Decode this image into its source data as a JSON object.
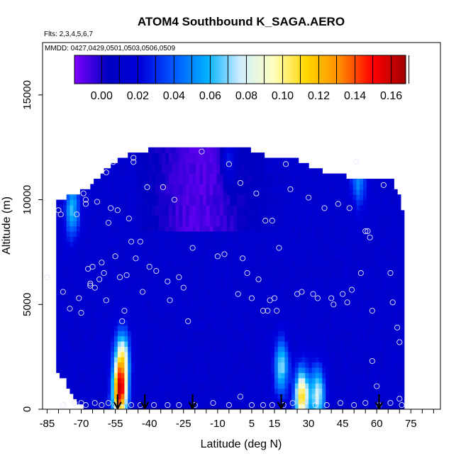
{
  "chart_data": {
    "type": "heatmap",
    "title": "ATOM4 Southbound K_SAGA.AERO",
    "flights_label": "Flts: 2,3,4,5,6,7",
    "dates_label": "MMDD: 0427,0429,0501,0503,0506,0509",
    "xlabel": "Latitude (deg N)",
    "ylabel": "Altitude (m)",
    "xlim": [
      -87,
      88
    ],
    "ylim": [
      0,
      17500
    ],
    "x_ticks": [
      -85,
      -70,
      -55,
      -40,
      -25,
      -10,
      5,
      15,
      30,
      45,
      60,
      75
    ],
    "x_tick_labels": [
      "-85",
      "-70",
      "-55",
      "-40",
      "-25",
      "-10",
      "5",
      "15",
      "30",
      "45",
      "60",
      "75"
    ],
    "y_ticks": [
      0,
      5000,
      10000,
      15000
    ],
    "y_tick_labels": [
      "0",
      "5000",
      "10000",
      "15000"
    ],
    "colorbar": {
      "min": -0.015,
      "max": 0.168,
      "ticks": [
        0.0,
        0.02,
        0.04,
        0.06,
        0.08,
        0.1,
        0.12,
        0.14,
        0.16
      ],
      "tick_labels": [
        "0.00",
        "0.02",
        "0.04",
        "0.06",
        "0.08",
        "0.10",
        "0.12",
        "0.14",
        "0.16"
      ],
      "colors": [
        "#7f00ff",
        "#0000c0",
        "#0000dd",
        "#0058ff",
        "#00b0ff",
        "#cfeeff",
        "#ffffc0",
        "#ffd700",
        "#ff8c00",
        "#ff0000",
        "#a00000"
      ]
    },
    "profile_arrows_lat": [
      -54,
      -42,
      -21,
      18,
      61
    ],
    "coverage_edges": {
      "lat": [
        -81,
        -77,
        -74,
        -70,
        -66,
        -62,
        -58,
        -54,
        -50,
        -46,
        -42,
        -38,
        -34,
        -30,
        -26,
        -22,
        -18,
        -14,
        -10,
        -6,
        -2,
        2,
        6,
        10,
        14,
        18,
        22,
        26,
        30,
        34,
        38,
        42,
        46,
        50,
        54,
        58,
        62,
        66,
        70,
        72
      ],
      "top_alt": [
        9800,
        10000,
        10100,
        10300,
        10500,
        11000,
        11400,
        11800,
        12000,
        12100,
        12200,
        12300,
        12300,
        12400,
        12400,
        12400,
        12400,
        12400,
        12400,
        12400,
        12400,
        12400,
        12200,
        12000,
        12000,
        11900,
        11900,
        11700,
        11500,
        11300,
        11200,
        11100,
        11000,
        11000,
        11000,
        11000,
        11000,
        11000,
        10000,
        9000
      ],
      "bottom_alt": [
        2000,
        1500,
        700,
        300,
        0,
        0,
        0,
        0,
        0,
        0,
        0,
        0,
        0,
        0,
        0,
        0,
        0,
        0,
        0,
        0,
        0,
        0,
        0,
        0,
        0,
        0,
        0,
        0,
        0,
        0,
        0,
        0,
        0,
        0,
        0,
        0,
        0,
        0,
        0,
        0
      ]
    },
    "hotspots": [
      {
        "lat": -53,
        "alt": 800,
        "value": 0.15
      },
      {
        "lat": -52,
        "alt": 2500,
        "value": 0.09
      },
      {
        "lat": 27,
        "alt": 600,
        "value": 0.11
      },
      {
        "lat": 34,
        "alt": 700,
        "value": 0.08
      },
      {
        "lat": 18,
        "alt": 2000,
        "value": 0.07
      },
      {
        "lat": -74,
        "alt": 9500,
        "value": 0.06
      },
      {
        "lat": 52,
        "alt": 11000,
        "value": 0.05
      },
      {
        "lat": -5,
        "alt": 12000,
        "value": 0.04
      }
    ],
    "sample_points": [
      {
        "lat": -85,
        "alt": 6300
      },
      {
        "lat": -80,
        "alt": 9500
      },
      {
        "lat": -79,
        "alt": 9300
      },
      {
        "lat": -78,
        "alt": 5600
      },
      {
        "lat": -75,
        "alt": 4800
      },
      {
        "lat": -72,
        "alt": 9300
      },
      {
        "lat": -71,
        "alt": 5300
      },
      {
        "lat": -70,
        "alt": 4600
      },
      {
        "lat": -69,
        "alt": 10300
      },
      {
        "lat": -68,
        "alt": 10000
      },
      {
        "lat": -68,
        "alt": 9800
      },
      {
        "lat": -67,
        "alt": 6700
      },
      {
        "lat": -66,
        "alt": 6000
      },
      {
        "lat": -66,
        "alt": 5900
      },
      {
        "lat": -65,
        "alt": 6800
      },
      {
        "lat": -64,
        "alt": 5800
      },
      {
        "lat": -63,
        "alt": 9900
      },
      {
        "lat": -62,
        "alt": 6200
      },
      {
        "lat": -61,
        "alt": 7000
      },
      {
        "lat": -60,
        "alt": 6500
      },
      {
        "lat": -59,
        "alt": 5200
      },
      {
        "lat": -59,
        "alt": 11300
      },
      {
        "lat": -58,
        "alt": 8900
      },
      {
        "lat": -57,
        "alt": 9600
      },
      {
        "lat": -56,
        "alt": 11800
      },
      {
        "lat": -55,
        "alt": 7300
      },
      {
        "lat": -54,
        "alt": 9500
      },
      {
        "lat": -53,
        "alt": 6300
      },
      {
        "lat": -52,
        "alt": 4200
      },
      {
        "lat": -51,
        "alt": 4700
      },
      {
        "lat": -50,
        "alt": 6400
      },
      {
        "lat": -49,
        "alt": 9100
      },
      {
        "lat": -48,
        "alt": 8000
      },
      {
        "lat": -47,
        "alt": 11800
      },
      {
        "lat": -47,
        "alt": 12000
      },
      {
        "lat": -46,
        "alt": 7200
      },
      {
        "lat": -44,
        "alt": 8000
      },
      {
        "lat": -43,
        "alt": 5600
      },
      {
        "lat": -41,
        "alt": 10600
      },
      {
        "lat": -40,
        "alt": 6800
      },
      {
        "lat": -37,
        "alt": 6600
      },
      {
        "lat": -34,
        "alt": 10600
      },
      {
        "lat": -32,
        "alt": 6100
      },
      {
        "lat": -31,
        "alt": 5200
      },
      {
        "lat": -29,
        "alt": 10000
      },
      {
        "lat": -27,
        "alt": 6300
      },
      {
        "lat": -25,
        "alt": 5800
      },
      {
        "lat": -23,
        "alt": 4200
      },
      {
        "lat": -21,
        "alt": 7700
      },
      {
        "lat": -17,
        "alt": 12300
      },
      {
        "lat": -10,
        "alt": 7300
      },
      {
        "lat": -7,
        "alt": 7400
      },
      {
        "lat": -5,
        "alt": 11700
      },
      {
        "lat": -1,
        "alt": 5500
      },
      {
        "lat": 0,
        "alt": 10800
      },
      {
        "lat": 1,
        "alt": 7200
      },
      {
        "lat": 3,
        "alt": 6500
      },
      {
        "lat": 5,
        "alt": 5300
      },
      {
        "lat": 7,
        "alt": 10300
      },
      {
        "lat": 8,
        "alt": 6200
      },
      {
        "lat": 10,
        "alt": 4700
      },
      {
        "lat": 11,
        "alt": 9000
      },
      {
        "lat": 12,
        "alt": 4700
      },
      {
        "lat": 13,
        "alt": 5200
      },
      {
        "lat": 14,
        "alt": 9000
      },
      {
        "lat": 15,
        "alt": 5300
      },
      {
        "lat": 16,
        "alt": 4700
      },
      {
        "lat": 17,
        "alt": 7700
      },
      {
        "lat": 20,
        "alt": 11700
      },
      {
        "lat": 22,
        "alt": 10500
      },
      {
        "lat": 25,
        "alt": 5500
      },
      {
        "lat": 27,
        "alt": 5600
      },
      {
        "lat": 30,
        "alt": 10100
      },
      {
        "lat": 32,
        "alt": 5500
      },
      {
        "lat": 34,
        "alt": 5300
      },
      {
        "lat": 37,
        "alt": 9600
      },
      {
        "lat": 40,
        "alt": 5300
      },
      {
        "lat": 41,
        "alt": 5000
      },
      {
        "lat": 43,
        "alt": 9800
      },
      {
        "lat": 45,
        "alt": 5500
      },
      {
        "lat": 47,
        "alt": 5100
      },
      {
        "lat": 48,
        "alt": 9600
      },
      {
        "lat": 49,
        "alt": 5700
      },
      {
        "lat": 51,
        "alt": 11800
      },
      {
        "lat": 53,
        "alt": 6500
      },
      {
        "lat": 55,
        "alt": 8500
      },
      {
        "lat": 56,
        "alt": 8500
      },
      {
        "lat": 57,
        "alt": 8200
      },
      {
        "lat": 58,
        "alt": 2300
      },
      {
        "lat": 58,
        "alt": 4700
      },
      {
        "lat": 60,
        "alt": 1100
      },
      {
        "lat": 63,
        "alt": 10700
      },
      {
        "lat": 66,
        "alt": 6500
      },
      {
        "lat": 67,
        "alt": 5100
      },
      {
        "lat": 69,
        "alt": 3900
      },
      {
        "lat": 70,
        "alt": 3200
      },
      {
        "lat": 70,
        "alt": 500
      },
      {
        "lat": -78,
        "alt": 200
      },
      {
        "lat": -73,
        "alt": 300
      },
      {
        "lat": -70,
        "alt": 300
      },
      {
        "lat": -68,
        "alt": 200
      },
      {
        "lat": -64,
        "alt": 300
      },
      {
        "lat": -61,
        "alt": 200
      },
      {
        "lat": -58,
        "alt": 300
      },
      {
        "lat": -55,
        "alt": 200
      },
      {
        "lat": -52,
        "alt": 100
      },
      {
        "lat": -48,
        "alt": 200
      },
      {
        "lat": -44,
        "alt": 200
      },
      {
        "lat": -38,
        "alt": 200
      },
      {
        "lat": -32,
        "alt": 200
      },
      {
        "lat": -27,
        "alt": 200
      },
      {
        "lat": -20,
        "alt": 200
      },
      {
        "lat": -12,
        "alt": 300
      },
      {
        "lat": -5,
        "alt": 200
      },
      {
        "lat": 0,
        "alt": 600
      },
      {
        "lat": 5,
        "alt": 200
      },
      {
        "lat": 10,
        "alt": 200
      },
      {
        "lat": 14,
        "alt": 200
      },
      {
        "lat": 19,
        "alt": 200
      },
      {
        "lat": 23,
        "alt": 300
      },
      {
        "lat": 28,
        "alt": 200
      },
      {
        "lat": 33,
        "alt": 200
      },
      {
        "lat": 38,
        "alt": 200
      },
      {
        "lat": 44,
        "alt": 300
      },
      {
        "lat": 50,
        "alt": 200
      },
      {
        "lat": 55,
        "alt": 300
      },
      {
        "lat": 61,
        "alt": 200
      },
      {
        "lat": 66,
        "alt": 300
      },
      {
        "lat": 71,
        "alt": 200
      }
    ]
  }
}
